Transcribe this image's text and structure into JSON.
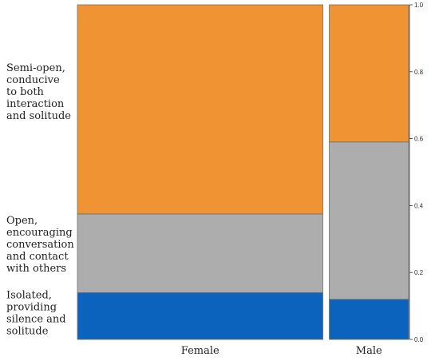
{
  "chart_data": {
    "type": "mosaic",
    "categories": [
      "Female",
      "Male"
    ],
    "category_shares": [
      0.7556,
      0.2444
    ],
    "series": [
      {
        "name": "Isolated, providing silence and solitude",
        "values": [
          0.14,
          0.12
        ],
        "color": "#0b63bd"
      },
      {
        "name": "Open, encouraging conversation and contact with others",
        "values": [
          0.235,
          0.47
        ],
        "color": "#adadad"
      },
      {
        "name": "Semi-open, conducive to both interaction and solitude",
        "values": [
          0.625,
          0.41
        ],
        "color": "#f09433"
      }
    ],
    "y_axis": {
      "ylim": [
        0,
        1
      ],
      "ticks": [
        "0.0",
        "0.2",
        "0.4",
        "0.6",
        "0.8",
        "1.0"
      ],
      "position": "right"
    },
    "row_labels": [
      [
        "Semi-open,",
        "conducive",
        "to both",
        "interaction",
        "and solitude"
      ],
      [
        "Open,",
        "encouraging",
        "conversation",
        "and contact",
        "with others"
      ],
      [
        "Isolated,",
        "providing",
        "silence and",
        "solitude"
      ]
    ],
    "grid": false
  }
}
